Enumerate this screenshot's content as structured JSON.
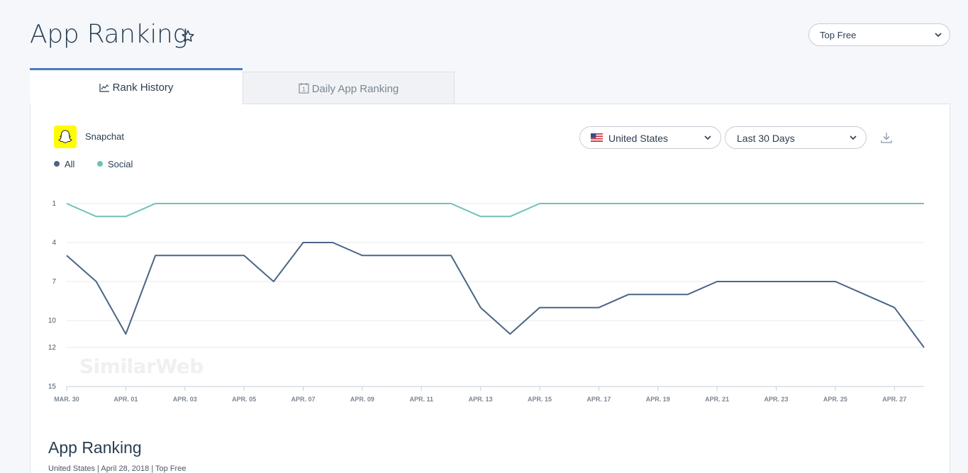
{
  "header": {
    "title": "App Ranking",
    "ranking_type": "Top Free"
  },
  "tabs": [
    {
      "label": "Rank History"
    },
    {
      "label": "Daily App Ranking"
    }
  ],
  "app": {
    "name": "Snapchat"
  },
  "filters": {
    "country": "United States",
    "period": "Last 30 Days"
  },
  "legend": [
    {
      "label": "All",
      "color": "#4a6585"
    },
    {
      "label": "Social",
      "color": "#6cc3b9"
    }
  ],
  "watermark": "SimilarWeb",
  "chart_data": {
    "type": "line",
    "title": "",
    "xlabel": "",
    "ylabel": "",
    "y_inverted": true,
    "ylim": [
      1,
      15
    ],
    "y_ticks": [
      "1",
      "4",
      "7",
      "10",
      "12",
      "15"
    ],
    "x_ticks": [
      "MAR. 30",
      "APR. 01",
      "APR. 03",
      "APR. 05",
      "APR. 07",
      "APR. 09",
      "APR. 11",
      "APR. 13",
      "APR. 15",
      "APR. 17",
      "APR. 19",
      "APR. 21",
      "APR. 23",
      "APR. 25",
      "APR. 27"
    ],
    "x": [
      "Mar 30",
      "Mar 31",
      "Apr 01",
      "Apr 02",
      "Apr 03",
      "Apr 04",
      "Apr 05",
      "Apr 06",
      "Apr 07",
      "Apr 08",
      "Apr 09",
      "Apr 10",
      "Apr 11",
      "Apr 12",
      "Apr 13",
      "Apr 14",
      "Apr 15",
      "Apr 16",
      "Apr 17",
      "Apr 18",
      "Apr 19",
      "Apr 20",
      "Apr 21",
      "Apr 22",
      "Apr 23",
      "Apr 24",
      "Apr 25",
      "Apr 26",
      "Apr 27",
      "Apr 28"
    ],
    "series": [
      {
        "name": "All",
        "color": "#4a6585",
        "values": [
          5,
          7,
          11,
          5,
          5,
          5,
          5,
          7,
          4,
          4,
          5,
          5,
          5,
          5,
          9,
          11,
          9,
          9,
          9,
          8,
          8,
          8,
          7,
          7,
          7,
          7,
          7,
          8,
          9,
          12
        ]
      },
      {
        "name": "Social",
        "color": "#6cc3b9",
        "values": [
          1,
          2,
          2,
          1,
          1,
          1,
          1,
          1,
          1,
          1,
          1,
          1,
          1,
          1,
          2,
          2,
          1,
          1,
          1,
          1,
          1,
          1,
          1,
          1,
          1,
          1,
          1,
          1,
          1,
          1
        ]
      }
    ],
    "grid": true
  },
  "section": {
    "title": "App Ranking",
    "subtitle": "United States | April 28, 2018 | Top Free"
  }
}
